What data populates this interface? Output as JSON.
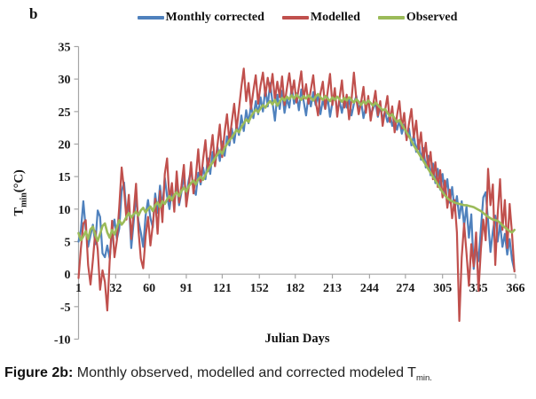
{
  "panel_label": "b",
  "caption": {
    "prefix": "Figure 2b:",
    "text": " Monthly observed, modelled and corrected modeled T",
    "subscript": "min."
  },
  "chart_data": {
    "type": "line",
    "title": "",
    "xlabel": "Julian Days",
    "ylabel": {
      "base": "T",
      "subscript": "min",
      "unit": "(°C)"
    },
    "xlim": [
      1,
      366
    ],
    "ylim": [
      -10,
      35
    ],
    "x_ticks": [
      1,
      32,
      60,
      91,
      121,
      152,
      182,
      213,
      244,
      274,
      305,
      335,
      366
    ],
    "y_ticks": [
      35,
      30,
      25,
      20,
      15,
      10,
      5,
      0,
      -5,
      -10
    ],
    "grid": false,
    "legend_position": "top-center",
    "axis_color": "#a6a6a6",
    "x_days": [
      1,
      3,
      5,
      7,
      9,
      11,
      13,
      15,
      17,
      19,
      21,
      23,
      25,
      27,
      29,
      31,
      33,
      35,
      37,
      39,
      41,
      43,
      45,
      47,
      49,
      51,
      53,
      55,
      57,
      59,
      61,
      63,
      65,
      67,
      69,
      71,
      73,
      75,
      77,
      79,
      81,
      83,
      85,
      87,
      89,
      91,
      93,
      95,
      97,
      99,
      101,
      103,
      105,
      107,
      109,
      111,
      113,
      115,
      117,
      119,
      121,
      123,
      125,
      127,
      129,
      131,
      133,
      135,
      137,
      139,
      141,
      143,
      145,
      147,
      149,
      151,
      153,
      155,
      157,
      159,
      161,
      163,
      165,
      167,
      169,
      171,
      173,
      175,
      177,
      179,
      181,
      183,
      185,
      187,
      189,
      191,
      193,
      195,
      197,
      199,
      201,
      203,
      205,
      207,
      209,
      211,
      213,
      215,
      217,
      219,
      221,
      223,
      225,
      227,
      229,
      231,
      233,
      235,
      237,
      239,
      241,
      243,
      245,
      247,
      249,
      251,
      253,
      255,
      257,
      259,
      261,
      263,
      265,
      267,
      269,
      271,
      273,
      275,
      277,
      279,
      281,
      283,
      285,
      287,
      289,
      291,
      293,
      295,
      297,
      299,
      301,
      303,
      305,
      307,
      309,
      311,
      313,
      315,
      317,
      319,
      321,
      323,
      325,
      327,
      329,
      331,
      333,
      335,
      337,
      339,
      341,
      343,
      345,
      347,
      349,
      351,
      353,
      355,
      357,
      359,
      361,
      363,
      365
    ],
    "series": [
      {
        "name": "Monthly corrected",
        "color": "#4F81BD",
        "values": [
          5.0,
          6.8,
          11.2,
          7.0,
          4.2,
          6.0,
          7.6,
          4.6,
          9.8,
          8.8,
          3.2,
          2.6,
          4.4,
          2.4,
          6.6,
          8.4,
          5.4,
          7.0,
          12.8,
          14.1,
          9.2,
          11.0,
          4.0,
          8.0,
          12.0,
          8.2,
          6.4,
          4.2,
          9.0,
          11.4,
          8.6,
          7.2,
          12.4,
          9.4,
          13.6,
          10.2,
          14.8,
          12.0,
          10.0,
          13.0,
          11.0,
          14.2,
          10.6,
          12.6,
          15.2,
          11.8,
          14.4,
          16.0,
          13.2,
          12.2,
          15.6,
          13.8,
          16.4,
          14.6,
          17.8,
          15.4,
          18.8,
          16.6,
          19.6,
          17.4,
          20.4,
          18.2,
          21.2,
          19.8,
          22.4,
          20.2,
          23.0,
          21.4,
          24.4,
          22.0,
          25.2,
          23.2,
          26.0,
          24.0,
          26.6,
          24.6,
          27.2,
          25.0,
          28.6,
          25.8,
          29.4,
          26.4,
          23.6,
          27.6,
          25.4,
          28.2,
          24.8,
          27.0,
          25.6,
          28.8,
          26.2,
          27.8,
          25.2,
          28.4,
          26.6,
          24.4,
          27.4,
          25.8,
          28.0,
          26.0,
          27.6,
          24.6,
          26.8,
          25.4,
          27.2,
          24.2,
          26.4,
          27.8,
          25.0,
          26.6,
          24.8,
          27.0,
          25.6,
          26.8,
          24.4,
          26.2,
          27.4,
          25.2,
          26.6,
          24.0,
          25.8,
          26.8,
          24.6,
          25.4,
          26.4,
          24.2,
          25.8,
          23.8,
          25.0,
          23.4,
          24.6,
          22.8,
          24.0,
          22.2,
          23.6,
          21.6,
          23.0,
          20.8,
          22.4,
          19.8,
          21.4,
          18.8,
          20.6,
          17.6,
          19.4,
          16.4,
          18.2,
          15.2,
          17.0,
          14.0,
          16.2,
          13.0,
          15.4,
          12.2,
          14.6,
          11.0,
          13.4,
          9.8,
          12.0,
          8.6,
          11.2,
          7.4,
          10.4,
          5.6,
          9.2,
          0.8,
          4.4,
          2.0,
          7.0,
          11.8,
          12.6,
          8.2,
          3.4,
          6.6,
          9.0,
          5.0,
          7.8,
          4.2,
          6.2,
          3.0,
          5.4,
          2.2,
          0.6
        ]
      },
      {
        "name": "Modelled",
        "color": "#C0504D",
        "values": [
          -0.6,
          4.0,
          7.8,
          8.3,
          1.4,
          -1.6,
          2.2,
          6.6,
          3.8,
          -2.4,
          0.6,
          -1.2,
          -5.6,
          2.0,
          8.2,
          2.6,
          5.2,
          10.4,
          16.4,
          13.0,
          8.4,
          12.2,
          5.4,
          9.4,
          13.9,
          6.8,
          2.4,
          0.9,
          5.8,
          8.8,
          4.4,
          7.6,
          11.6,
          6.2,
          12.8,
          8.0,
          15.4,
          17.8,
          11.2,
          14.0,
          9.6,
          15.8,
          11.0,
          13.6,
          16.8,
          10.4,
          13.2,
          17.2,
          12.4,
          15.0,
          19.2,
          14.2,
          17.6,
          20.6,
          15.8,
          18.4,
          21.4,
          16.6,
          19.8,
          23.0,
          18.0,
          21.8,
          24.6,
          20.4,
          23.4,
          26.2,
          22.2,
          25.4,
          28.8,
          31.6,
          26.6,
          29.4,
          25.4,
          28.2,
          30.6,
          26.2,
          29.0,
          31.0,
          27.4,
          30.2,
          28.0,
          30.8,
          26.8,
          29.6,
          27.2,
          30.4,
          26.0,
          28.6,
          30.9,
          27.6,
          29.8,
          26.4,
          28.8,
          31.2,
          27.0,
          29.2,
          26.2,
          28.4,
          30.6,
          26.6,
          24.4,
          27.8,
          29.6,
          25.4,
          28.0,
          30.8,
          26.0,
          28.6,
          24.2,
          27.2,
          29.8,
          25.6,
          27.6,
          23.8,
          26.8,
          31.0,
          27.0,
          24.6,
          26.4,
          28.8,
          24.8,
          27.4,
          23.6,
          26.0,
          28.2,
          24.4,
          26.6,
          22.8,
          25.2,
          27.4,
          23.4,
          25.8,
          21.8,
          24.4,
          26.6,
          22.4,
          24.8,
          20.6,
          23.2,
          25.4,
          21.0,
          23.6,
          19.2,
          21.8,
          17.6,
          20.2,
          16.2,
          18.8,
          14.6,
          17.2,
          13.4,
          16.0,
          11.8,
          14.4,
          10.2,
          13.0,
          8.6,
          11.4,
          6.4,
          -7.2,
          2.6,
          7.8,
          3.2,
          -1.8,
          4.6,
          1.2,
          6.4,
          -2.6,
          3.8,
          8.4,
          5.2,
          16.2,
          10.6,
          13.8,
          1.4,
          9.2,
          14.6,
          6.8,
          11.4,
          4.0,
          10.8,
          6.2,
          0.4
        ]
      },
      {
        "name": "Observed",
        "color": "#9BBB59",
        "values": [
          6.3,
          5.2,
          5.8,
          6.6,
          5.4,
          6.9,
          7.3,
          6.0,
          5.1,
          6.2,
          7.4,
          7.8,
          6.4,
          5.6,
          6.8,
          6.1,
          7.2,
          8.3,
          7.6,
          8.1,
          8.8,
          9.4,
          8.7,
          9.2,
          9.6,
          9.0,
          9.8,
          10.2,
          9.5,
          10.0,
          10.4,
          9.7,
          10.6,
          11.0,
          10.3,
          11.2,
          10.8,
          11.5,
          12.0,
          11.4,
          12.2,
          12.6,
          12.0,
          12.8,
          13.3,
          12.7,
          13.5,
          14.0,
          14.4,
          13.8,
          14.6,
          15.0,
          14.5,
          15.3,
          16.0,
          16.6,
          17.2,
          17.8,
          18.4,
          19.0,
          18.5,
          19.4,
          20.0,
          20.6,
          21.0,
          21.6,
          22.2,
          21.8,
          22.6,
          23.2,
          23.8,
          23.4,
          24.2,
          24.8,
          25.3,
          24.9,
          25.5,
          26.0,
          25.6,
          26.2,
          26.6,
          26.1,
          26.8,
          25.9,
          26.5,
          27.1,
          26.7,
          27.3,
          26.9,
          27.5,
          27.0,
          27.6,
          27.2,
          26.8,
          27.4,
          27.0,
          27.5,
          27.1,
          26.7,
          27.3,
          27.7,
          27.2,
          26.8,
          27.4,
          27.0,
          26.6,
          27.2,
          26.8,
          27.3,
          26.9,
          26.5,
          27.1,
          26.7,
          27.2,
          26.8,
          26.4,
          26.9,
          26.5,
          26.0,
          26.6,
          26.2,
          26.7,
          26.3,
          25.9,
          26.4,
          26.0,
          25.6,
          25.2,
          25.4,
          24.8,
          24.3,
          24.6,
          23.9,
          23.4,
          23.7,
          23.0,
          22.4,
          21.8,
          21.2,
          20.5,
          19.8,
          19.2,
          18.6,
          18.0,
          17.4,
          16.8,
          16.2,
          15.6,
          15.0,
          14.4,
          13.8,
          13.2,
          12.6,
          12.1,
          11.7,
          11.4,
          11.2,
          11.0,
          10.9,
          10.8,
          10.7,
          10.6,
          10.6,
          10.5,
          10.4,
          10.3,
          10.1,
          9.9,
          9.7,
          9.4,
          9.1,
          8.8,
          8.6,
          8.4,
          8.3,
          8.2,
          7.9,
          7.5,
          7.2,
          6.9,
          6.6,
          6.4,
          6.8
        ]
      }
    ]
  }
}
